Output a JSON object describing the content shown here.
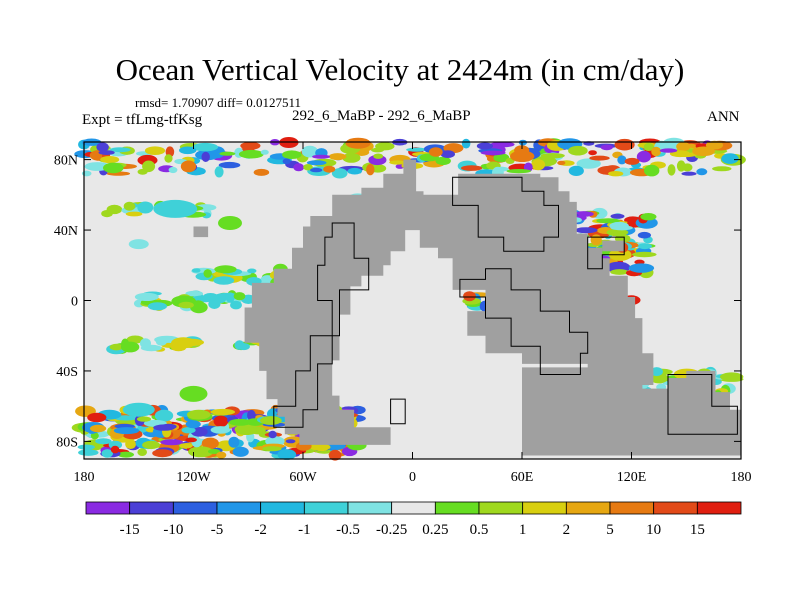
{
  "chart_data": {
    "type": "heatmap",
    "title": "Ocean Vertical Velocity at 2424m (in cm/day)",
    "stats_text": "rmsd= 1.70907 diff= 0.0127511",
    "left_label": "Expt = tfLmg-tfKsg",
    "center_label": "292_6_MaBP - 292_6_MaBP",
    "right_label": "ANN",
    "xlim": [
      -180,
      180
    ],
    "ylim": [
      -90,
      90
    ],
    "x_ticks": [
      {
        "value": -180,
        "label": "180"
      },
      {
        "value": -120,
        "label": "120W"
      },
      {
        "value": -60,
        "label": "60W"
      },
      {
        "value": 0,
        "label": "0"
      },
      {
        "value": 60,
        "label": "60E"
      },
      {
        "value": 120,
        "label": "120E"
      },
      {
        "value": 180,
        "label": "180"
      }
    ],
    "y_ticks": [
      {
        "value": 80,
        "label": "80N"
      },
      {
        "value": 40,
        "label": "40N"
      },
      {
        "value": 0,
        "label": "0"
      },
      {
        "value": -40,
        "label": "40S"
      },
      {
        "value": -80,
        "label": "80S"
      }
    ],
    "colorbar": {
      "levels": [
        "-15",
        "-10",
        "-5",
        "-2",
        "-1",
        "-0.5",
        "-0.25",
        "0.25",
        "0.5",
        "1",
        "2",
        "5",
        "10",
        "15"
      ],
      "colors": [
        "#8a2be2",
        "#4b3fd6",
        "#2c5fe0",
        "#2196e8",
        "#22b8e0",
        "#3fd1d8",
        "#7fe3e3",
        "#e8e8e8",
        "#66dd22",
        "#9fd81e",
        "#d8cf10",
        "#e6a712",
        "#e67a12",
        "#e24a18",
        "#e01e10"
      ]
    },
    "colors": {
      "ocean_near_zero": "#e8e8e8",
      "land": "#a0a0a0"
    }
  }
}
